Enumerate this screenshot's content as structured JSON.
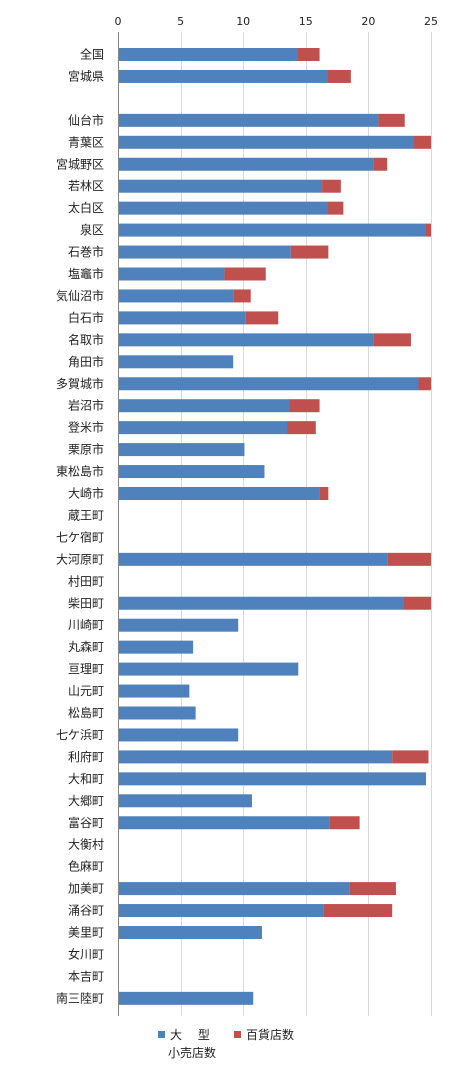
{
  "chart_data": {
    "type": "bar",
    "orientation": "horizontal",
    "stacked": true,
    "xlim": [
      0,
      25
    ],
    "x_ticks": [
      "0",
      "5",
      "10",
      "15",
      "20",
      "25"
    ],
    "grid": "vertical",
    "legend_position": "bottom",
    "categories": [
      "全国",
      "宮城県",
      "",
      "仙台市",
      "青葉区",
      "宮城野区",
      "若林区",
      "太白区",
      "泉区",
      "石巻市",
      "塩竈市",
      "気仙沼市",
      "白石市",
      "名取市",
      "角田市",
      "多賀城市",
      "岩沼市",
      "登米市",
      "栗原市",
      "東松島市",
      "大崎市",
      "蔵王町",
      "七ケ宿町",
      "大河原町",
      "村田町",
      "柴田町",
      "川崎町",
      "丸森町",
      "亘理町",
      "山元町",
      "松島町",
      "七ケ浜町",
      "利府町",
      "大和町",
      "大郷町",
      "富谷町",
      "大衡村",
      "色麻町",
      "加美町",
      "涌谷町",
      "美里町",
      "女川町",
      "本吉町",
      "南三陸町"
    ],
    "series": [
      {
        "name": "大　 型",
        "name_line2": "小売店数",
        "color": "#4F81BD",
        "values": [
          14.3,
          16.7,
          null,
          20.8,
          23.6,
          20.4,
          16.3,
          16.7,
          24.6,
          13.8,
          8.5,
          9.2,
          10.2,
          20.4,
          9.2,
          24.0,
          13.7,
          13.5,
          10.1,
          11.7,
          16.1,
          0,
          0,
          21.5,
          0,
          22.8,
          9.6,
          6.0,
          14.4,
          5.7,
          6.2,
          9.6,
          21.9,
          24.6,
          10.7,
          16.9,
          0,
          0,
          18.5,
          16.4,
          11.5,
          0,
          0,
          10.8
        ]
      },
      {
        "name": "百貨店数",
        "color": "#C0504D",
        "values": [
          1.8,
          1.9,
          null,
          2.1,
          1.6,
          1.1,
          1.5,
          1.3,
          0.6,
          3.0,
          3.3,
          1.4,
          2.6,
          3.0,
          0,
          1.2,
          2.4,
          2.3,
          0,
          0,
          0.7,
          0,
          0,
          3.7,
          0,
          2.5,
          0,
          0,
          0,
          0,
          0,
          0,
          2.9,
          0,
          0,
          2.4,
          0,
          0,
          3.7,
          5.5,
          0,
          0,
          0,
          0
        ]
      }
    ]
  }
}
